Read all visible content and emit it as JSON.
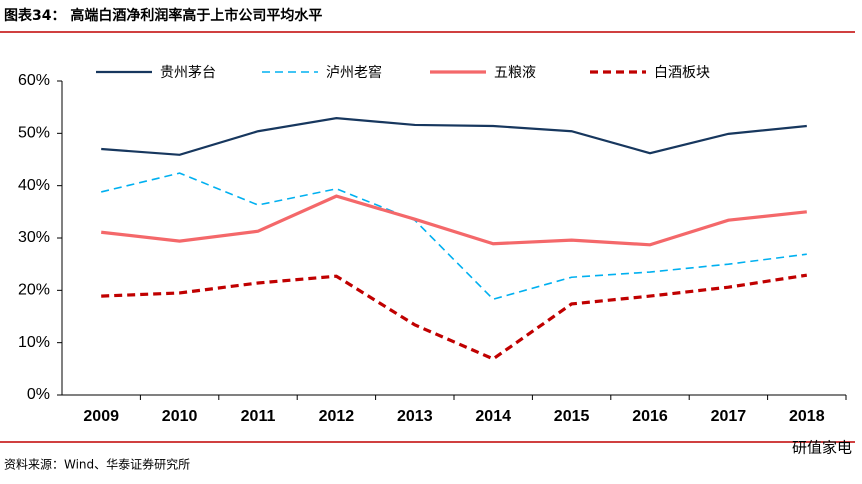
{
  "chart_data": {
    "type": "line",
    "title": "图表34：  高端白酒净利润率高于上市公司平均水平",
    "source": "资料来源：Wind、华泰证券研究所",
    "watermark": "研值家电",
    "categories": [
      "2009",
      "2010",
      "2011",
      "2012",
      "2013",
      "2014",
      "2015",
      "2016",
      "2017",
      "2018"
    ],
    "series": [
      {
        "name": "贵州茅台",
        "color": "#17375e",
        "dashed": false,
        "values": [
          47.0,
          45.9,
          50.4,
          52.9,
          51.6,
          51.4,
          50.4,
          46.2,
          49.9,
          51.4
        ]
      },
      {
        "name": "泸州老窖",
        "color": "#00b0f0",
        "dashed": true,
        "values": [
          38.8,
          42.4,
          36.3,
          39.4,
          33.4,
          18.3,
          22.5,
          23.5,
          25.0,
          26.9
        ]
      },
      {
        "name": "五粮液",
        "color": "#f4686a",
        "dashed": false,
        "values": [
          31.1,
          29.4,
          31.3,
          38.0,
          33.6,
          28.9,
          29.6,
          28.7,
          33.4,
          35.0
        ]
      },
      {
        "name": "白酒板块",
        "color": "#c00000",
        "dashed": true,
        "values": [
          18.9,
          19.5,
          21.4,
          22.7,
          13.4,
          6.9,
          17.4,
          18.9,
          20.6,
          22.9
        ]
      }
    ],
    "ylim": [
      0,
      60
    ],
    "yticks": [
      {
        "value": 0,
        "label": "0%"
      },
      {
        "value": 10,
        "label": "10%"
      },
      {
        "value": 20,
        "label": "20%"
      },
      {
        "value": 30,
        "label": "30%"
      },
      {
        "value": 40,
        "label": "40%"
      },
      {
        "value": 50,
        "label": "50%"
      },
      {
        "value": 60,
        "label": "60%"
      }
    ],
    "grid": false,
    "legend": "top"
  }
}
